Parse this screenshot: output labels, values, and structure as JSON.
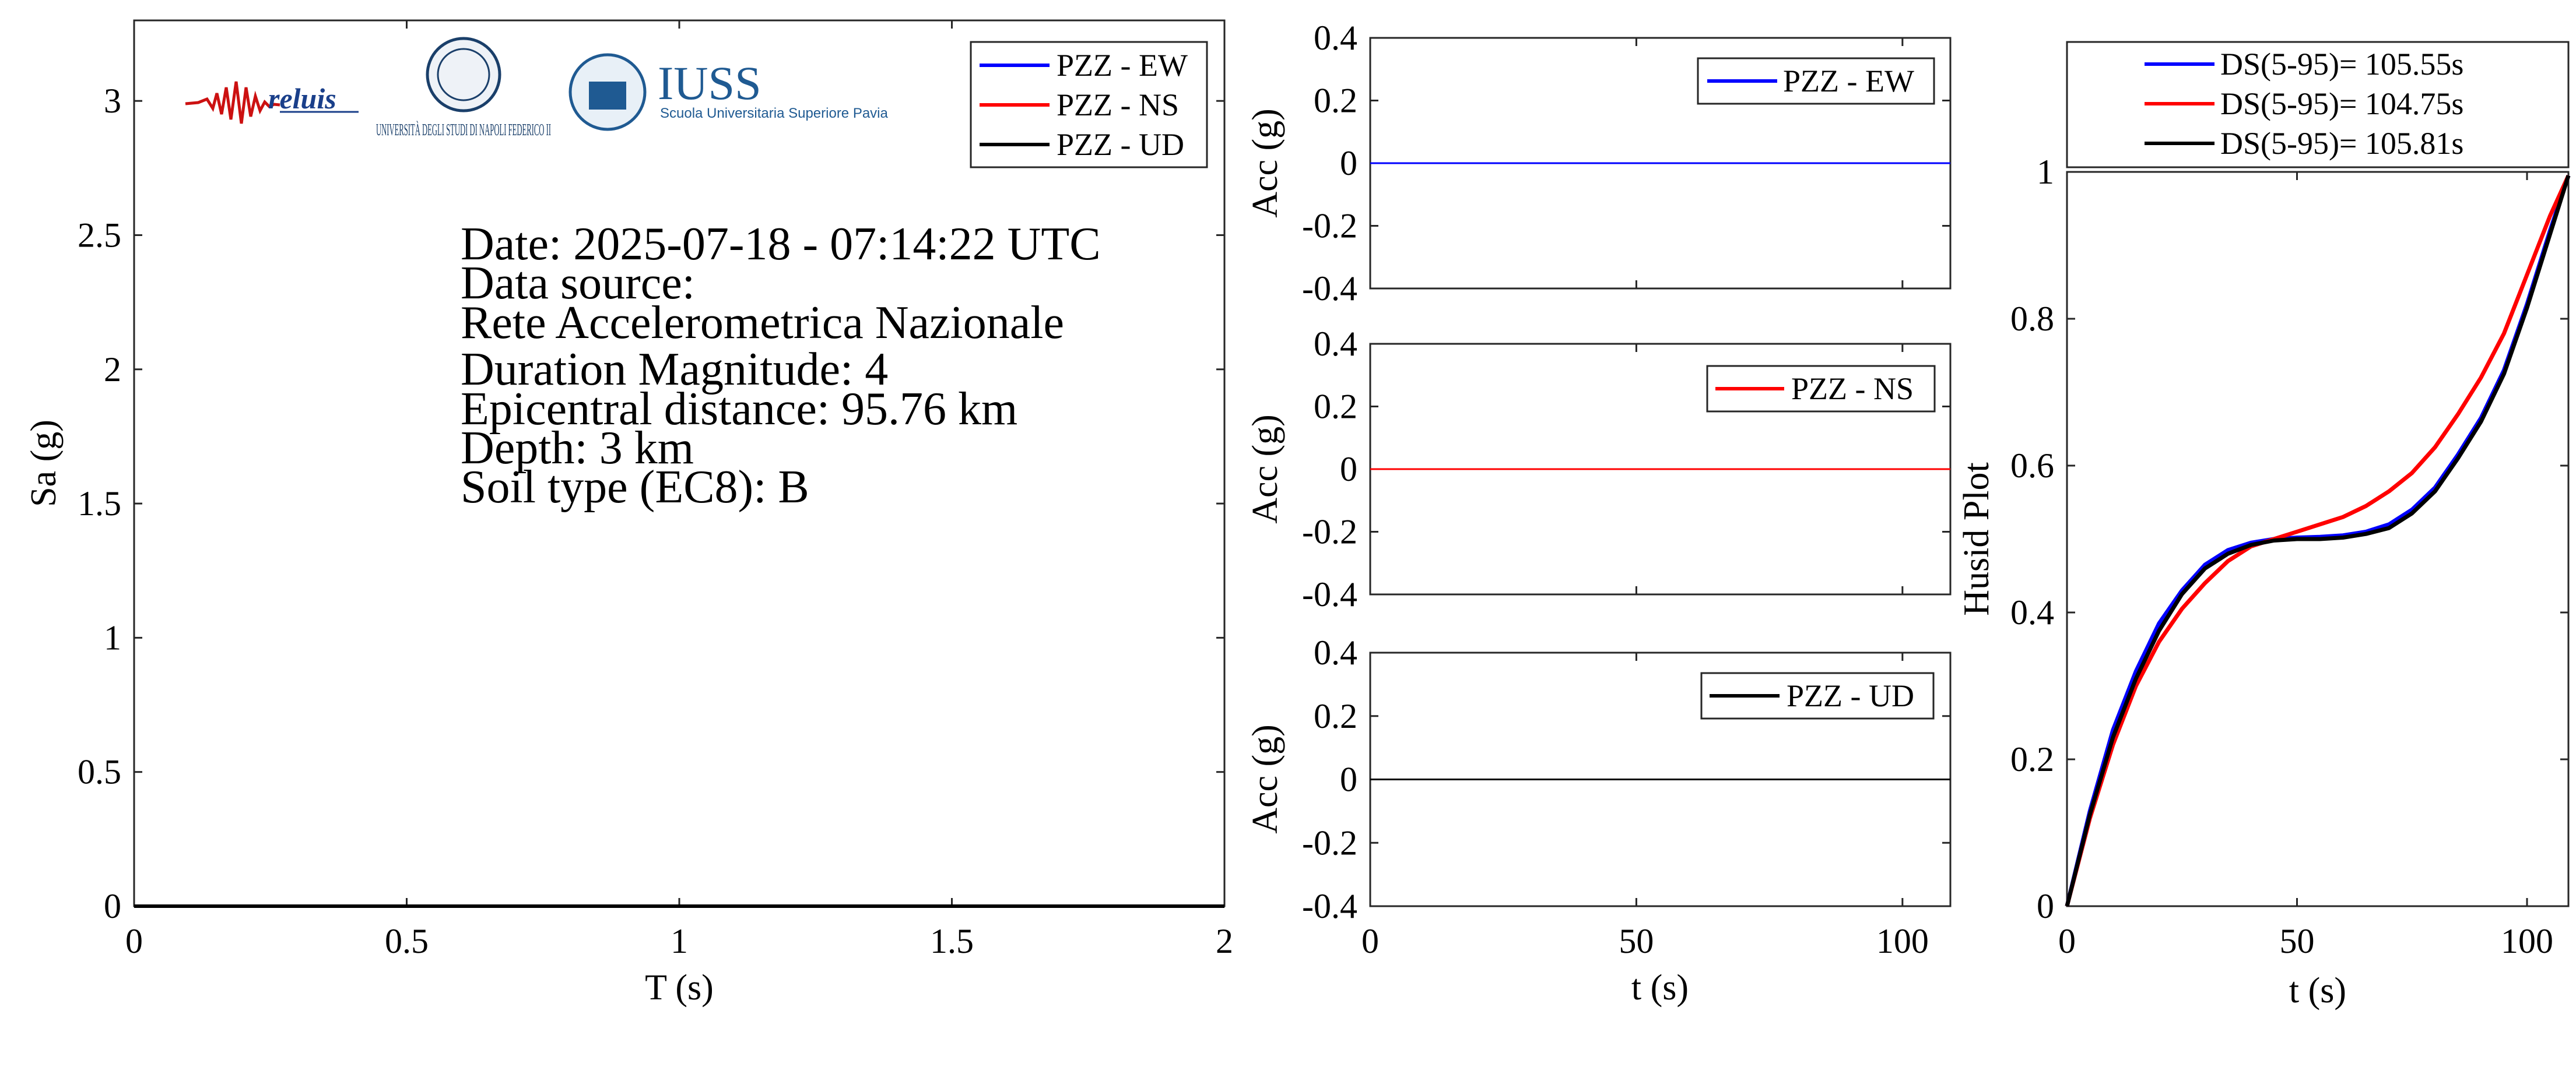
{
  "colors": {
    "ew": "#0000ff",
    "ns": "#ff0000",
    "ud": "#000000"
  },
  "logos": {
    "reluis": "reluis",
    "unina": "UNIVERSITÀ DEGLI STUDI DI NAPOLI FEDERICO II",
    "iuss_name": "IUSS",
    "iuss_sub": "Scuola Universitaria Superiore Pavia"
  },
  "info": [
    "Date: 2025-07-18 - 07:14:22 UTC",
    "Data source:",
    "Rete Accelerometrica Nazionale",
    "Duration Magnitude: 4",
    "Epicentral distance: 95.76 km",
    "Depth: 3 km",
    "Soil type (EC8): B"
  ],
  "chart_data": [
    {
      "type": "line",
      "id": "spectrum",
      "xlabel": "T (s)",
      "ylabel": "Sa (g)",
      "xlim": [
        0,
        2
      ],
      "ylim": [
        0,
        3.3
      ],
      "xticks": [
        0,
        0.5,
        1,
        1.5,
        2
      ],
      "xtick_labels": [
        "0",
        "0.5",
        "1",
        "1.5",
        "2"
      ],
      "yticks": [
        0,
        0.5,
        1,
        1.5,
        2,
        2.5,
        3
      ],
      "ytick_labels": [
        "0",
        "0.5",
        "1",
        "1.5",
        "2",
        "2.5",
        "3"
      ],
      "legend_position": "top-right",
      "series": [
        {
          "name": "PZZ - EW",
          "color": "#0000ff",
          "x": [
            0,
            2
          ],
          "y": [
            0,
            0
          ]
        },
        {
          "name": "PZZ - NS",
          "color": "#ff0000",
          "x": [
            0,
            2
          ],
          "y": [
            0,
            0
          ]
        },
        {
          "name": "PZZ - UD",
          "color": "#000000",
          "x": [
            0,
            2
          ],
          "y": [
            0,
            0
          ]
        }
      ]
    },
    {
      "type": "line",
      "id": "acc_ew",
      "xlabel": "",
      "ylabel": "Acc (g)",
      "xlim": [
        0,
        109
      ],
      "ylim": [
        -0.4,
        0.4
      ],
      "yticks": [
        -0.4,
        -0.2,
        0,
        0.2,
        0.4
      ],
      "ytick_labels": [
        "-0.4",
        "-0.2",
        "0",
        "0.2",
        "0.4"
      ],
      "legend_position": "top-right",
      "series": [
        {
          "name": "PZZ - EW",
          "color": "#0000ff",
          "x": [
            0,
            109
          ],
          "y": [
            0,
            0
          ]
        }
      ]
    },
    {
      "type": "line",
      "id": "acc_ns",
      "xlabel": "",
      "ylabel": "Acc (g)",
      "xlim": [
        0,
        109
      ],
      "ylim": [
        -0.4,
        0.4
      ],
      "yticks": [
        -0.4,
        -0.2,
        0,
        0.2,
        0.4
      ],
      "ytick_labels": [
        "-0.4",
        "-0.2",
        "0",
        "0.2",
        "0.4"
      ],
      "legend_position": "top-right",
      "series": [
        {
          "name": "PZZ - NS",
          "color": "#ff0000",
          "x": [
            0,
            109
          ],
          "y": [
            0,
            0
          ]
        }
      ]
    },
    {
      "type": "line",
      "id": "acc_ud",
      "xlabel": "t (s)",
      "ylabel": "Acc (g)",
      "xlim": [
        0,
        109
      ],
      "ylim": [
        -0.4,
        0.4
      ],
      "xticks": [
        0,
        50,
        100
      ],
      "xtick_labels": [
        "0",
        "50",
        "100"
      ],
      "yticks": [
        -0.4,
        -0.2,
        0,
        0.2,
        0.4
      ],
      "ytick_labels": [
        "-0.4",
        "-0.2",
        "0",
        "0.2",
        "0.4"
      ],
      "legend_position": "top-right",
      "series": [
        {
          "name": "PZZ - UD",
          "color": "#000000",
          "x": [
            0,
            109
          ],
          "y": [
            0,
            0
          ]
        }
      ]
    },
    {
      "type": "line",
      "id": "husid",
      "xlabel": "t (s)",
      "ylabel": "Husid Plot",
      "xlim": [
        0,
        109
      ],
      "ylim": [
        0,
        1
      ],
      "xticks": [
        0,
        50,
        100
      ],
      "xtick_labels": [
        "0",
        "50",
        "100"
      ],
      "yticks": [
        0,
        0.2,
        0.4,
        0.6,
        0.8,
        1
      ],
      "ytick_labels": [
        "0",
        "0.2",
        "0.4",
        "0.6",
        "0.8",
        "1"
      ],
      "legend_position": "top (outside)",
      "series": [
        {
          "name": "DS(5-95)= 105.55s",
          "color": "#0000ff",
          "x": [
            0,
            5,
            10,
            15,
            20,
            25,
            30,
            35,
            40,
            45,
            50,
            55,
            60,
            65,
            70,
            75,
            80,
            85,
            90,
            95,
            100,
            105,
            109
          ],
          "y": [
            0,
            0.13,
            0.24,
            0.32,
            0.385,
            0.43,
            0.465,
            0.485,
            0.495,
            0.5,
            0.502,
            0.503,
            0.505,
            0.51,
            0.52,
            0.54,
            0.57,
            0.615,
            0.665,
            0.73,
            0.82,
            0.92,
            0.995
          ]
        },
        {
          "name": "DS(5-95)= 104.75s",
          "color": "#ff0000",
          "x": [
            0,
            5,
            10,
            15,
            20,
            25,
            30,
            35,
            40,
            45,
            50,
            55,
            60,
            65,
            70,
            75,
            80,
            85,
            90,
            95,
            100,
            105,
            109
          ],
          "y": [
            0,
            0.12,
            0.22,
            0.3,
            0.36,
            0.405,
            0.44,
            0.47,
            0.49,
            0.5,
            0.51,
            0.52,
            0.53,
            0.545,
            0.565,
            0.59,
            0.625,
            0.67,
            0.72,
            0.78,
            0.86,
            0.94,
            0.995
          ]
        },
        {
          "name": "DS(5-95)= 105.81s",
          "color": "#000000",
          "x": [
            0,
            5,
            10,
            15,
            20,
            25,
            30,
            35,
            40,
            45,
            50,
            55,
            60,
            65,
            70,
            75,
            80,
            85,
            90,
            95,
            100,
            105,
            109
          ],
          "y": [
            0,
            0.125,
            0.23,
            0.31,
            0.375,
            0.425,
            0.46,
            0.48,
            0.492,
            0.498,
            0.5,
            0.5,
            0.502,
            0.507,
            0.515,
            0.535,
            0.565,
            0.61,
            0.66,
            0.725,
            0.815,
            0.915,
            0.995
          ]
        }
      ]
    }
  ]
}
